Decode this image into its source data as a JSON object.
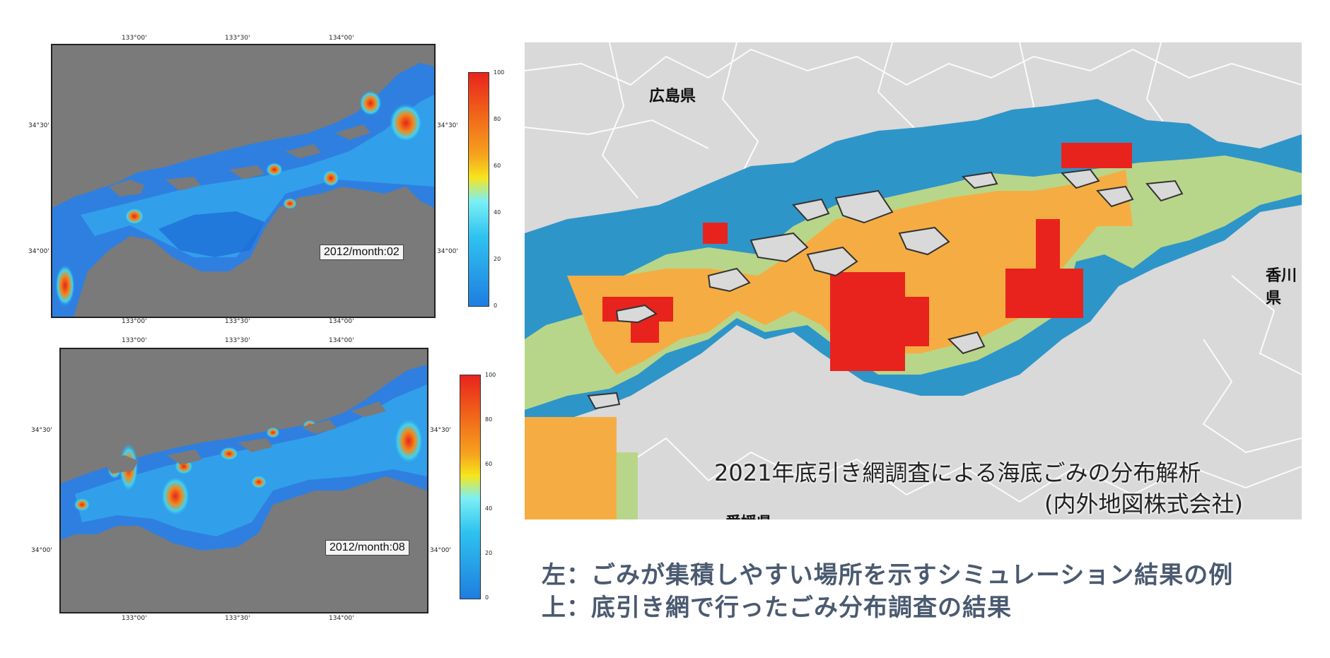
{
  "sim_top": {
    "period_label": "2012/month:02",
    "lon_ticks": [
      "133°00'",
      "133°30'",
      "134°00'"
    ],
    "lat_ticks": [
      "34°30'",
      "34°00'"
    ],
    "colorbar_ticks": [
      "100",
      "80",
      "60",
      "40",
      "20",
      "0"
    ]
  },
  "sim_bottom": {
    "period_label": "2012/month:08",
    "lon_ticks": [
      "133°00'",
      "133°30'",
      "134°00'"
    ],
    "lat_ticks": [
      "34°30'",
      "34°00'"
    ],
    "colorbar_ticks": [
      "100",
      "80",
      "60",
      "40",
      "20",
      "0"
    ]
  },
  "survey_map": {
    "pref_hiroshima": "広島県",
    "pref_kagawa": "香川県",
    "pref_ehime": "愛媛県",
    "title": "2021年底引き網調査による海底ごみの分布解析",
    "credit": "(内外地図株式会社)",
    "colors": {
      "high": "#e8231d",
      "mid": "#f5ad43",
      "low": "#b8d689",
      "none": "#2e95c9",
      "land": "#d9d9d9"
    }
  },
  "caption": {
    "line1": "左：ごみが集積しやすい場所を示すシミュレーション結果の例",
    "line2": "上：底引き網で行ったごみ分布調査の結果"
  },
  "colors": {
    "sim_land": "#7a7a7a",
    "caption_text": "#4a5a70"
  }
}
